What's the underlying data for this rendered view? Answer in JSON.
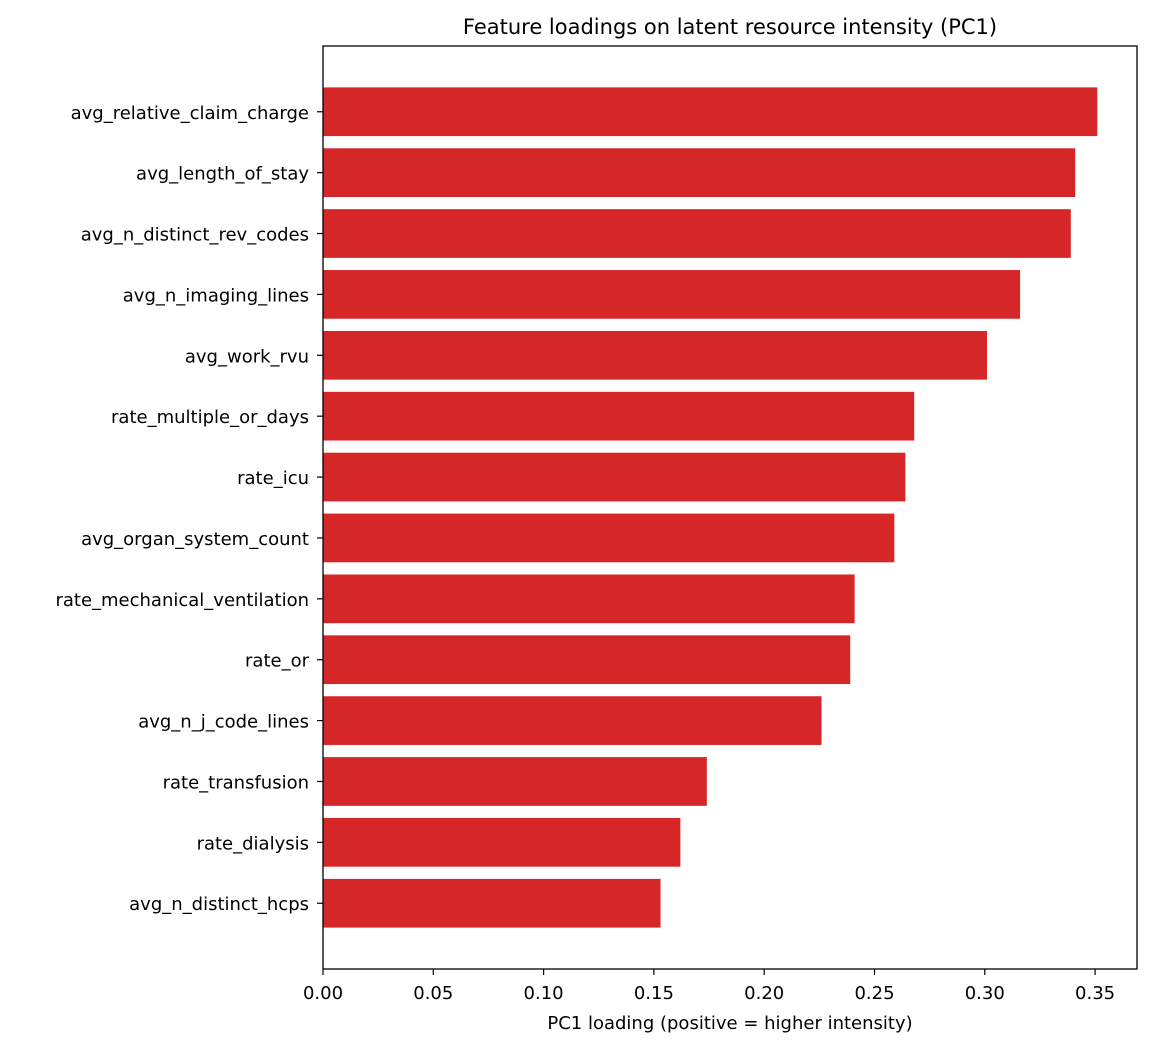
{
  "chart_data": {
    "type": "bar",
    "orientation": "horizontal",
    "title": "Feature loadings on latent resource intensity (PC1)",
    "xlabel": "PC1 loading (positive = higher intensity)",
    "ylabel": "",
    "xlim": [
      0,
      0.369
    ],
    "xticks": [
      0.0,
      0.05,
      0.1,
      0.15,
      0.2,
      0.25,
      0.3,
      0.35
    ],
    "xtick_labels": [
      "0.00",
      "0.05",
      "0.10",
      "0.15",
      "0.20",
      "0.25",
      "0.30",
      "0.35"
    ],
    "grid": false,
    "bar_color": "#d62728",
    "categories": [
      "avg_relative_claim_charge",
      "avg_length_of_stay",
      "avg_n_distinct_rev_codes",
      "avg_n_imaging_lines",
      "avg_work_rvu",
      "rate_multiple_or_days",
      "rate_icu",
      "avg_organ_system_count",
      "rate_mechanical_ventilation",
      "rate_or",
      "avg_n_j_code_lines",
      "rate_transfusion",
      "rate_dialysis",
      "avg_n_distinct_hcps"
    ],
    "values": [
      0.351,
      0.341,
      0.339,
      0.316,
      0.301,
      0.268,
      0.264,
      0.259,
      0.241,
      0.239,
      0.226,
      0.174,
      0.162,
      0.153
    ]
  }
}
